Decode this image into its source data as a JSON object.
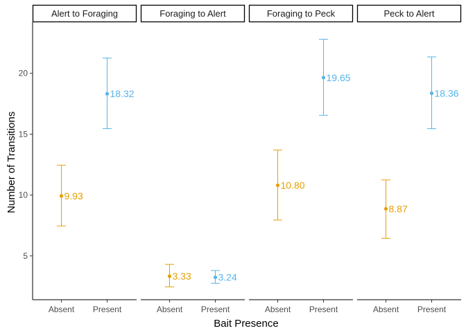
{
  "chart_data": {
    "type": "scatter",
    "subtype": "point with error bars, faceted",
    "title": "",
    "xlabel": "Bait Presence",
    "ylabel": "Number of Transitions",
    "categories": [
      "Absent",
      "Present"
    ],
    "ylim": [
      1.4,
      24.2
    ],
    "yticks": [
      5,
      10,
      15,
      20
    ],
    "grid": false,
    "legend": "none",
    "colors": {
      "Absent": "#E69F00",
      "Present": "#56B4E9"
    },
    "facets": [
      {
        "name": "Alert to Foraging",
        "points": [
          {
            "category": "Absent",
            "value": 9.93,
            "lower": 7.45,
            "upper": 12.45,
            "label": "9.93"
          },
          {
            "category": "Present",
            "value": 18.32,
            "lower": 15.45,
            "upper": 21.25,
            "label": "18.32"
          }
        ]
      },
      {
        "name": "Foraging to Alert",
        "points": [
          {
            "category": "Absent",
            "value": 3.33,
            "lower": 2.45,
            "upper": 4.3,
            "label": "3.33"
          },
          {
            "category": "Present",
            "value": 3.24,
            "lower": 2.75,
            "upper": 3.8,
            "label": "3.24"
          }
        ]
      },
      {
        "name": "Foraging to Peck",
        "points": [
          {
            "category": "Absent",
            "value": 10.8,
            "lower": 7.95,
            "upper": 13.7,
            "label": "10.80"
          },
          {
            "category": "Present",
            "value": 19.65,
            "lower": 16.55,
            "upper": 22.8,
            "label": "19.65"
          }
        ]
      },
      {
        "name": "Peck to Alert",
        "points": [
          {
            "category": "Absent",
            "value": 8.87,
            "lower": 6.45,
            "upper": 11.25,
            "label": "8.87"
          },
          {
            "category": "Present",
            "value": 18.36,
            "lower": 15.45,
            "upper": 21.35,
            "label": "18.36"
          }
        ]
      }
    ]
  }
}
